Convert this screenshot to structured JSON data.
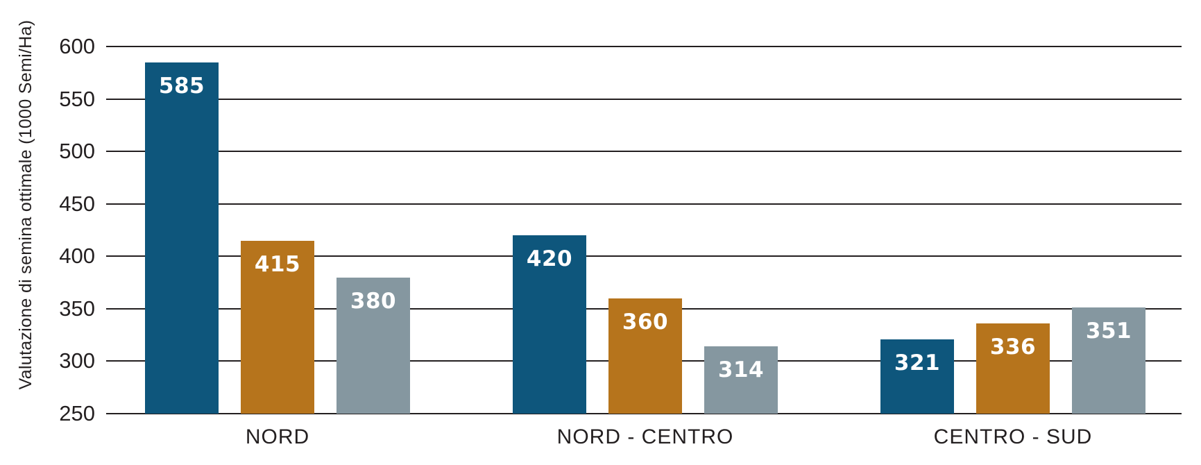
{
  "chart_data": {
    "type": "bar",
    "title": "",
    "xlabel": "",
    "ylabel": "Valutazione di semina ottimale (1000 Semi/Ha)",
    "categories": [
      "NORD",
      "NORD - CENTRO",
      "CENTRO - SUD"
    ],
    "series": [
      {
        "color": "#0e567c",
        "values": [
          585,
          420,
          321
        ]
      },
      {
        "color": "#b6741c",
        "values": [
          415,
          360,
          336
        ]
      },
      {
        "color": "#8597a0",
        "values": [
          380,
          314,
          351
        ]
      }
    ],
    "yticks": [
      250,
      300,
      350,
      400,
      450,
      500,
      550,
      600
    ],
    "ylim": [
      250,
      600
    ],
    "grid": true,
    "legend": "none",
    "bar_labels": true,
    "colors": {
      "background": "#ffffff",
      "gridline": "#231f20",
      "tick_text": "#231f20",
      "category_text": "#231f20",
      "bar_label_text": "#ffffff"
    }
  }
}
